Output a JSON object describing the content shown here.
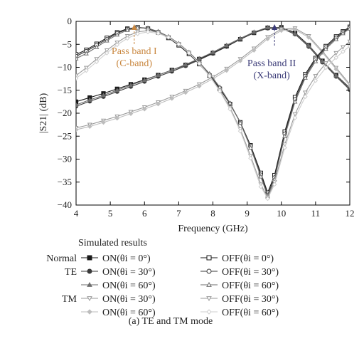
{
  "chart_data": {
    "type": "line",
    "xlabel": "Frequency (GHz)",
    "ylabel": "|S21| (dB)",
    "xlim": [
      4,
      12
    ],
    "ylim": [
      -40,
      0
    ],
    "xticks": [
      4,
      5,
      6,
      7,
      8,
      9,
      10,
      11,
      12
    ],
    "yticks": [
      0,
      -5,
      -10,
      -15,
      -20,
      -25,
      -30,
      -35,
      -40
    ],
    "grid": false,
    "annotations": [
      {
        "text": "Pass band I",
        "color": "#c9873f",
        "arrow_x": 5.7
      },
      {
        "text": "(C-band)",
        "color": "#c9873f"
      },
      {
        "text": "Pass band II",
        "color": "#3c3c78",
        "arrow_x": 9.8
      },
      {
        "text": "(X-band)",
        "color": "#3c3c78"
      }
    ],
    "legend": {
      "title": "Simulated results",
      "placement": "below",
      "row_labels": [
        "Normal",
        "TE",
        "",
        "TM",
        ""
      ]
    },
    "caption": "(a) TE and TM mode",
    "series": [
      {
        "name": "ON(θi = 0°)",
        "color": "#1a1a1a",
        "marker": "square-filled",
        "x": [
          4,
          4.4,
          4.8,
          5.2,
          5.6,
          6,
          6.4,
          6.8,
          7.2,
          7.6,
          8,
          8.4,
          8.8,
          9.2,
          9.6,
          10,
          10.4,
          10.8,
          11.2,
          11.6,
          12
        ],
        "y": [
          -17.5,
          -16.6,
          -15.7,
          -14.7,
          -13.7,
          -12.7,
          -11.7,
          -10.6,
          -9.5,
          -8.2,
          -6.9,
          -5.4,
          -3.9,
          -2.5,
          -1.4,
          -1.3,
          -2.5,
          -5.2,
          -8.6,
          -11.7,
          -14.5
        ]
      },
      {
        "name": "ON(θi = 30°)",
        "color": "#3a3a3a",
        "marker": "circle-filled",
        "x": [
          4,
          4.4,
          4.8,
          5.2,
          5.6,
          6,
          6.4,
          6.8,
          7.2,
          7.6,
          8,
          8.4,
          8.8,
          9.2,
          9.6,
          10,
          10.4,
          10.8,
          11.2,
          11.6,
          12
        ],
        "y": [
          -18.5,
          -17.4,
          -16.4,
          -15.3,
          -14.2,
          -13.1,
          -12,
          -10.9,
          -9.7,
          -8.4,
          -7,
          -5.5,
          -3.9,
          -2.5,
          -1.5,
          -1.5,
          -2.8,
          -5.5,
          -8.9,
          -12,
          -14.9
        ]
      },
      {
        "name": "ON(θi = 60°)",
        "color": "#6e6e6e",
        "marker": "triangle-filled",
        "x": [
          4,
          4.4,
          4.8,
          5.2,
          5.6,
          6,
          6.4,
          6.8,
          7.2,
          7.6,
          8,
          8.4,
          8.8,
          9.2,
          9.6,
          10,
          10.4,
          10.8,
          11.2,
          11.6,
          12
        ],
        "y": [
          -18.2,
          -17.1,
          -16.1,
          -15,
          -13.9,
          -12.8,
          -11.7,
          -10.6,
          -9.4,
          -8.1,
          -6.7,
          -5.2,
          -3.7,
          -2.3,
          -1.3,
          -1.4,
          -2.7,
          -5.3,
          -8.7,
          -11.8,
          -14.7
        ]
      },
      {
        "name": "ON(θi = 30°)",
        "color": "#9a9a9a",
        "marker": "triangle-down-open",
        "x": [
          4,
          4.4,
          4.8,
          5.2,
          5.6,
          6,
          6.4,
          6.8,
          7.2,
          7.6,
          8,
          8.4,
          8.8,
          9.2,
          9.6,
          10,
          10.4,
          10.8,
          11.2,
          11.6,
          12
        ],
        "y": [
          -23.2,
          -22.5,
          -21.6,
          -20.7,
          -19.7,
          -18.7,
          -17.6,
          -16.4,
          -15.1,
          -13.7,
          -12.1,
          -10.3,
          -8.2,
          -5.9,
          -3.4,
          -1.7,
          -1.5,
          -3.2,
          -6.5,
          -10.1,
          -13.7
        ]
      },
      {
        "name": "ON(θi = 60°)",
        "color": "#bdbdbd",
        "marker": "diamond-filled",
        "x": [
          4,
          4.4,
          4.8,
          5.2,
          5.6,
          6,
          6.4,
          6.8,
          7.2,
          7.6,
          8,
          8.4,
          8.8,
          9.2,
          9.6,
          10,
          10.4,
          10.8,
          11.2,
          11.6,
          12
        ],
        "y": [
          -23.6,
          -22.9,
          -22,
          -21.1,
          -20.1,
          -19.1,
          -18,
          -16.8,
          -15.5,
          -14.1,
          -12.5,
          -10.7,
          -8.6,
          -6.3,
          -3.8,
          -2,
          -1.8,
          -3.5,
          -6.8,
          -10.4,
          -14
        ]
      },
      {
        "name": "OFF(θi = 0°)",
        "color": "#1a1a1a",
        "marker": "square-open",
        "x": [
          4,
          4.3,
          4.6,
          4.9,
          5.2,
          5.5,
          5.8,
          6.1,
          6.4,
          6.7,
          7,
          7.3,
          7.6,
          7.9,
          8.2,
          8.5,
          8.8,
          9.1,
          9.4,
          9.6,
          9.8,
          10.1,
          10.4,
          10.7,
          11,
          11.3,
          11.6,
          11.8,
          12
        ],
        "y": [
          -7.2,
          -6.2,
          -4.9,
          -3.6,
          -2.4,
          -1.6,
          -1.3,
          -1.6,
          -2.4,
          -3.6,
          -5.2,
          -7.1,
          -9.3,
          -11.8,
          -14.7,
          -18,
          -22,
          -27,
          -33,
          -37.3,
          -33.5,
          -24,
          -16.5,
          -11.5,
          -8,
          -5.4,
          -3.3,
          -2.2,
          -1.2
        ]
      },
      {
        "name": "OFF(θi = 30°)",
        "color": "#3a3a3a",
        "marker": "circle-open",
        "x": [
          4,
          4.3,
          4.6,
          4.9,
          5.2,
          5.5,
          5.8,
          6.1,
          6.4,
          6.7,
          7,
          7.3,
          7.6,
          7.9,
          8.2,
          8.5,
          8.8,
          9.1,
          9.4,
          9.6,
          9.8,
          10.1,
          10.4,
          10.7,
          11,
          11.3,
          11.6,
          11.8,
          12
        ],
        "y": [
          -7.6,
          -6.5,
          -5.2,
          -3.9,
          -2.6,
          -1.7,
          -1.3,
          -1.5,
          -2.3,
          -3.5,
          -5,
          -6.9,
          -9.1,
          -11.6,
          -14.5,
          -17.9,
          -22,
          -27.2,
          -33.4,
          -37.8,
          -34,
          -24.5,
          -17,
          -11.9,
          -8.3,
          -5.7,
          -3.6,
          -2.4,
          -1.4
        ]
      },
      {
        "name": "OFF(θi = 60°)",
        "color": "#6e6e6e",
        "marker": "triangle-open",
        "x": [
          4,
          4.3,
          4.6,
          4.9,
          5.2,
          5.5,
          5.8,
          6.1,
          6.4,
          6.7,
          7,
          7.3,
          7.6,
          7.9,
          8.2,
          8.5,
          8.8,
          9.1,
          9.4,
          9.6,
          9.8,
          10.1,
          10.4,
          10.7,
          11,
          11.3,
          11.6,
          11.8,
          12
        ],
        "y": [
          -8.1,
          -7,
          -5.6,
          -4.2,
          -2.9,
          -1.9,
          -1.4,
          -1.5,
          -2.2,
          -3.3,
          -4.8,
          -6.7,
          -8.9,
          -11.4,
          -14.3,
          -17.8,
          -22.1,
          -27.5,
          -33.8,
          -38.1,
          -34.4,
          -25,
          -17.5,
          -12.3,
          -8.7,
          -6,
          -3.9,
          -2.6,
          -1.6
        ]
      },
      {
        "name": "OFF(θi = 30°)",
        "color": "#9a9a9a",
        "marker": "triangle-down-open",
        "x": [
          4,
          4.3,
          4.6,
          4.9,
          5.2,
          5.5,
          5.8,
          6.1,
          6.4,
          6.7,
          7,
          7.3,
          7.6,
          7.9,
          8.2,
          8.5,
          8.8,
          9.1,
          9.4,
          9.6,
          9.8,
          10.1,
          10.4,
          10.7,
          11,
          11.3,
          11.6,
          11.8,
          12
        ],
        "y": [
          -11.8,
          -10.1,
          -8.2,
          -6.3,
          -4.6,
          -3.2,
          -2.3,
          -2,
          -2.4,
          -3.4,
          -4.9,
          -6.8,
          -9.1,
          -11.8,
          -15,
          -18.8,
          -23.5,
          -29.3,
          -35.5,
          -38.4,
          -35,
          -26.8,
          -20.2,
          -15.5,
          -11.9,
          -9.1,
          -6.9,
          -5.6,
          -4.4
        ]
      },
      {
        "name": "OFF(θi = 60°)",
        "color": "#cfcfcf",
        "marker": "diamond-open",
        "x": [
          4,
          4.3,
          4.6,
          4.9,
          5.2,
          5.5,
          5.8,
          6.1,
          6.4,
          6.7,
          7,
          7.3,
          7.6,
          7.9,
          8.2,
          8.5,
          8.8,
          9.1,
          9.4,
          9.6,
          9.8,
          10.1,
          10.4,
          10.7,
          11,
          11.3,
          11.6,
          11.8,
          12
        ],
        "y": [
          -12.4,
          -10.7,
          -8.8,
          -6.9,
          -5.1,
          -3.7,
          -2.7,
          -2.3,
          -2.6,
          -3.5,
          -5,
          -6.9,
          -9.2,
          -11.9,
          -15.2,
          -19.1,
          -23.9,
          -29.8,
          -36,
          -38.6,
          -35.5,
          -27.5,
          -21,
          -16.4,
          -12.9,
          -10.1,
          -7.9,
          -6.6,
          -5.4
        ]
      }
    ]
  }
}
